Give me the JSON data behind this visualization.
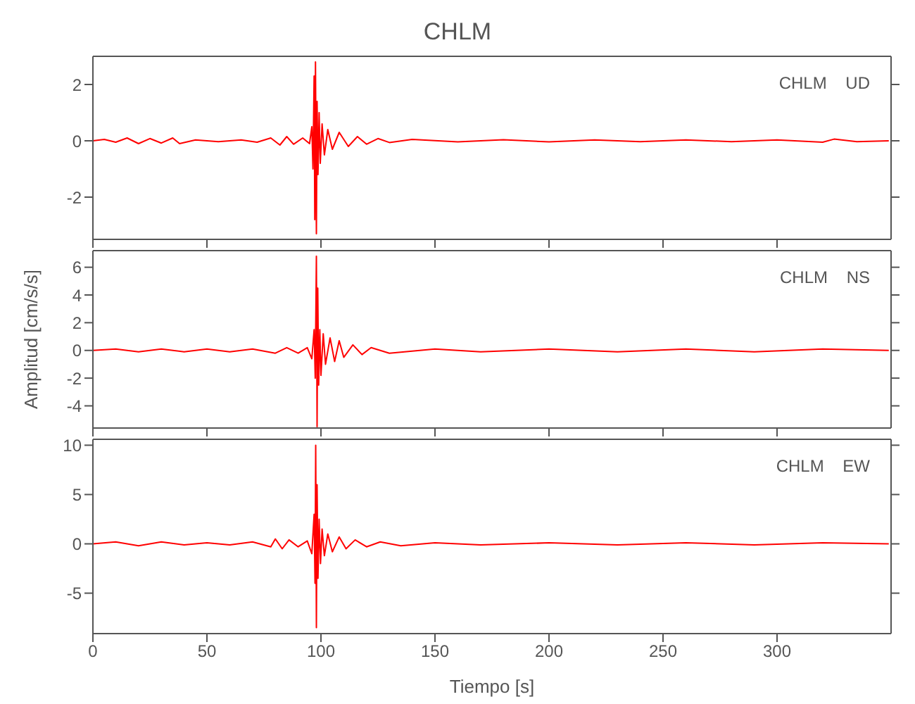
{
  "chart_data": [
    {
      "type": "line",
      "title": "CHLM",
      "annotations": [
        "CHLM    UD"
      ],
      "tick_labels": "y",
      "marker": "none",
      "xlim": [
        0,
        350
      ],
      "xticks": [
        0,
        50,
        100,
        150,
        200,
        250,
        300
      ],
      "ylim": [
        -3.5,
        3
      ],
      "yticks": [
        -2,
        0,
        2
      ],
      "series": [
        {
          "color": "#ff0000",
          "x": [
            0,
            5,
            10,
            15,
            20,
            25,
            30,
            35,
            38,
            45,
            55,
            65,
            72,
            78,
            82,
            85,
            88,
            92,
            95,
            96,
            96.5,
            97,
            97.3,
            97.6,
            98,
            98.3,
            98.7,
            99.2,
            99.7,
            100.5,
            101.5,
            103,
            105,
            108,
            112,
            116,
            120,
            125,
            130,
            140,
            160,
            180,
            200,
            220,
            240,
            260,
            280,
            300,
            320,
            325,
            335,
            349
          ],
          "values": [
            0,
            0.05,
            -0.05,
            0.1,
            -0.1,
            0.08,
            -0.08,
            0.1,
            -0.1,
            0.03,
            -0.03,
            0.03,
            -0.05,
            0.1,
            -0.15,
            0.15,
            -0.12,
            0.1,
            -0.1,
            0.5,
            -1,
            2.3,
            -2.8,
            2.8,
            -3.3,
            1.4,
            -1.2,
            1,
            -0.8,
            0.6,
            -0.5,
            0.4,
            -0.3,
            0.3,
            -0.2,
            0.15,
            -0.12,
            0.08,
            -0.06,
            0.05,
            -0.04,
            0.04,
            -0.04,
            0.03,
            -0.03,
            0.03,
            -0.03,
            0.03,
            -0.05,
            0.06,
            -0.03,
            0
          ]
        }
      ]
    },
    {
      "type": "line",
      "ylabel": "Amplitud  [cm/s/s]",
      "annotations": [
        "CHLM    NS"
      ],
      "tick_labels": "y",
      "marker": "none",
      "xlim": [
        0,
        350
      ],
      "xticks": [
        0,
        50,
        100,
        150,
        200,
        250,
        300
      ],
      "ylim": [
        -5.6,
        7.2
      ],
      "yticks": [
        -4,
        -2,
        0,
        2,
        4,
        6
      ],
      "series": [
        {
          "color": "#ff0000",
          "x": [
            0,
            10,
            20,
            30,
            40,
            50,
            60,
            70,
            80,
            85,
            90,
            94,
            96,
            97,
            97.5,
            98,
            98.3,
            98.6,
            99,
            99.5,
            100,
            101,
            102,
            104,
            106,
            108,
            110,
            114,
            118,
            122,
            130,
            150,
            170,
            200,
            230,
            260,
            290,
            320,
            349
          ],
          "values": [
            0,
            0.1,
            -0.1,
            0.1,
            -0.1,
            0.1,
            -0.1,
            0.1,
            -0.2,
            0.2,
            -0.2,
            0.2,
            -0.6,
            1.5,
            -2,
            6.8,
            -5.5,
            4.5,
            -2.5,
            1.5,
            -1.8,
            1.2,
            -1,
            0.9,
            -0.8,
            0.7,
            -0.5,
            0.4,
            -0.3,
            0.2,
            -0.2,
            0.1,
            -0.1,
            0.1,
            -0.1,
            0.1,
            -0.1,
            0.1,
            0
          ]
        }
      ]
    },
    {
      "type": "line",
      "xlabel": "Tiempo  [s]",
      "annotations": [
        "CHLM    EW"
      ],
      "marker": "none",
      "xlim": [
        0,
        350
      ],
      "xticks": [
        0,
        50,
        100,
        150,
        200,
        250,
        300
      ],
      "ylim": [
        -9.1,
        10.6
      ],
      "yticks": [
        -5,
        0,
        5,
        10
      ],
      "series": [
        {
          "color": "#ff0000",
          "x": [
            0,
            10,
            20,
            30,
            40,
            50,
            60,
            70,
            78,
            80,
            83,
            86,
            90,
            94,
            96,
            97,
            97.4,
            97.7,
            98,
            98.3,
            98.7,
            99.2,
            99.8,
            100.5,
            101.5,
            103,
            105,
            108,
            111,
            115,
            120,
            126,
            135,
            150,
            170,
            200,
            230,
            260,
            290,
            320,
            349
          ],
          "values": [
            0,
            0.2,
            -0.2,
            0.2,
            -0.1,
            0.1,
            -0.1,
            0.2,
            -0.3,
            0.5,
            -0.5,
            0.4,
            -0.3,
            0.3,
            -1,
            3,
            -4,
            10,
            -8.5,
            6,
            -3.5,
            2.5,
            -2,
            1.5,
            -1.2,
            1,
            -0.8,
            0.7,
            -0.5,
            0.4,
            -0.3,
            0.2,
            -0.2,
            0.1,
            -0.1,
            0.1,
            -0.1,
            0.1,
            -0.1,
            0.1,
            0
          ]
        }
      ]
    }
  ]
}
